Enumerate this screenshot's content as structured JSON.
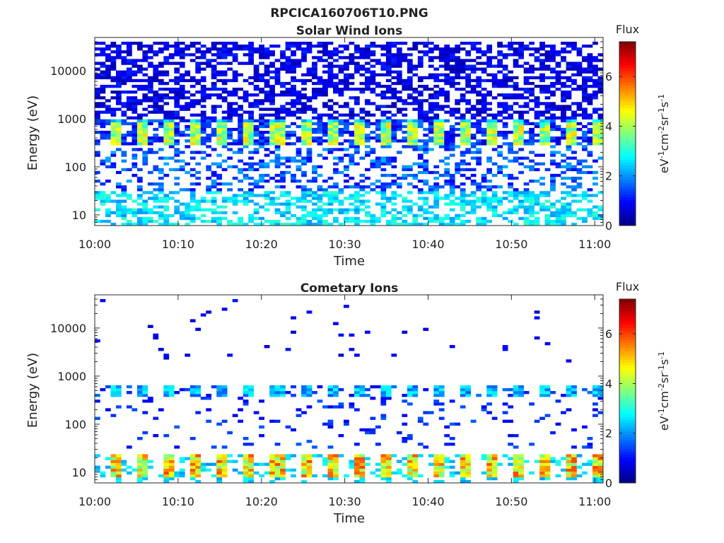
{
  "figure_title": "RPCICA160706T10.PNG",
  "chart_data": [
    {
      "type": "heatmap",
      "title": "Solar Wind Ions",
      "xlabel": "Time",
      "ylabel": "Energy (eV)",
      "x_ticks": [
        "10:00",
        "10:10",
        "10:20",
        "10:30",
        "10:40",
        "10:50",
        "11:00"
      ],
      "x_range": [
        "10:00",
        "11:01"
      ],
      "y_scale": "log",
      "y_ticks": [
        10,
        100,
        1000,
        10000
      ],
      "y_tick_labels": [
        "10",
        "100",
        "1000",
        "10000"
      ],
      "y_range": [
        6,
        40000
      ],
      "colorbar": {
        "title": "Flux",
        "label": "eV-1cm-2sr-1s-1",
        "min": 0,
        "max": 7.4,
        "ticks": [
          0,
          2,
          4,
          6
        ],
        "tick_labels": [
          "0",
          "2",
          "4",
          "6"
        ],
        "colormap": "jet"
      },
      "features": [
        {
          "energy_eV": [
            300,
            900
          ],
          "flux": [
            3,
            5
          ],
          "description_from_pixels": "periodic bursts every ~3.2 min"
        },
        {
          "energy_eV": [
            1000,
            40000
          ],
          "flux": [
            0.3,
            1.2
          ],
          "description_from_pixels": "broad low-level background"
        },
        {
          "energy_eV": [
            6,
            30
          ],
          "flux": [
            2,
            3
          ],
          "description_from_pixels": "low-energy band"
        }
      ]
    },
    {
      "type": "heatmap",
      "title": "Cometary Ions",
      "xlabel": "Time",
      "ylabel": "Energy (eV)",
      "x_ticks": [
        "10:00",
        "10:10",
        "10:20",
        "10:30",
        "10:40",
        "10:50",
        "11:00"
      ],
      "x_range": [
        "10:00",
        "11:01"
      ],
      "y_scale": "log",
      "y_ticks": [
        10,
        100,
        1000,
        10000
      ],
      "y_tick_labels": [
        "10",
        "100",
        "1000",
        "10000"
      ],
      "y_range": [
        6,
        40000
      ],
      "colorbar": {
        "title": "Flux",
        "label": "eV-1cm-2sr-1s-1",
        "min": 0,
        "max": 7.4,
        "ticks": [
          0,
          2,
          4,
          6
        ],
        "tick_labels": [
          "0",
          "2",
          "4",
          "6"
        ],
        "colormap": "jet"
      },
      "features": [
        {
          "energy_eV": [
            8,
            25
          ],
          "flux": [
            3.5,
            6
          ],
          "description_from_pixels": "periodic bursts every ~3.2 min"
        },
        {
          "energy_eV": [
            350,
            650
          ],
          "flux": [
            1.5,
            3
          ],
          "description_from_pixels": "periodic mid-energy band"
        },
        {
          "energy_eV": [
            40,
            300
          ],
          "flux": [
            0.8,
            1.5
          ],
          "description_from_pixels": "sparse scattered pixels"
        }
      ]
    }
  ]
}
